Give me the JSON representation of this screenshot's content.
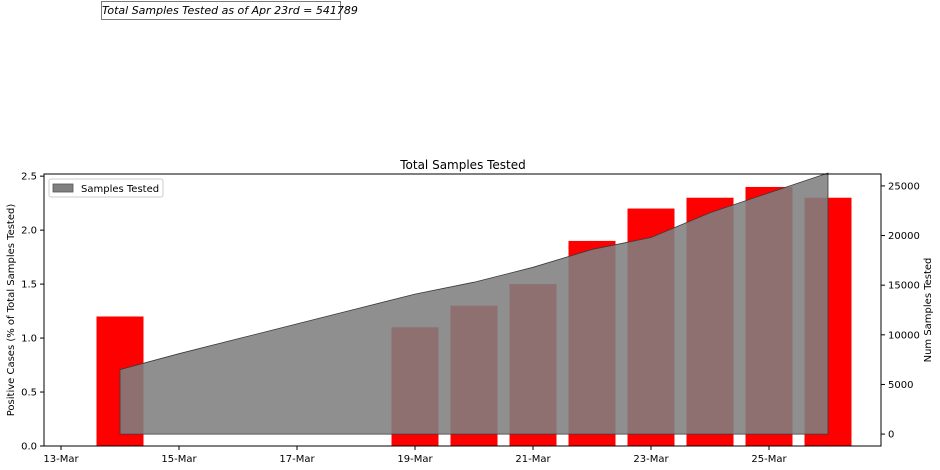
{
  "annotation": "Total Samples Tested as of Apr 23rd = 541789",
  "chart_data": {
    "type": "bar",
    "title": "Total Samples Tested",
    "xlabel": "",
    "ylabel": "Positive Cases (% of Total Samples Tested)",
    "ylabel_right": "Num Samples Tested",
    "x_tick_labels": [
      "13-Mar",
      "15-Mar",
      "17-Mar",
      "19-Mar",
      "21-Mar",
      "23-Mar",
      "25-Mar"
    ],
    "y_ticks_left": [
      "0.0",
      "0.5",
      "1.0",
      "1.5",
      "2.0",
      "2.5"
    ],
    "y_ticks_right": [
      "0",
      "5000",
      "10000",
      "15000",
      "20000",
      "25000"
    ],
    "ylim_left": [
      0,
      2.52
    ],
    "ylim_right": [
      -1200,
      26200
    ],
    "bars": {
      "name": "Positive Cases (%)",
      "color": "#ff0000",
      "x": [
        "14-Mar",
        "19-Mar",
        "20-Mar",
        "21-Mar",
        "22-Mar",
        "23-Mar",
        "24-Mar",
        "25-Mar",
        "26-Mar"
      ],
      "values": [
        1.2,
        1.1,
        1.3,
        1.5,
        1.9,
        2.2,
        2.3,
        2.4,
        2.3
      ]
    },
    "area": {
      "name": "Samples Tested",
      "color": "#808080",
      "baseline": 0,
      "x": [
        "14-Mar",
        "15-Mar",
        "16-Mar",
        "17-Mar",
        "18-Mar",
        "19-Mar",
        "20-Mar",
        "21-Mar",
        "22-Mar",
        "23-Mar",
        "24-Mar",
        "25-Mar",
        "26-Mar"
      ],
      "values": [
        6500,
        8100,
        9600,
        11100,
        12600,
        14100,
        15300,
        16800,
        18600,
        19800,
        22300,
        24300,
        26300
      ]
    },
    "legend": {
      "label": "Samples Tested",
      "position": "top-left"
    },
    "grid": false
  }
}
